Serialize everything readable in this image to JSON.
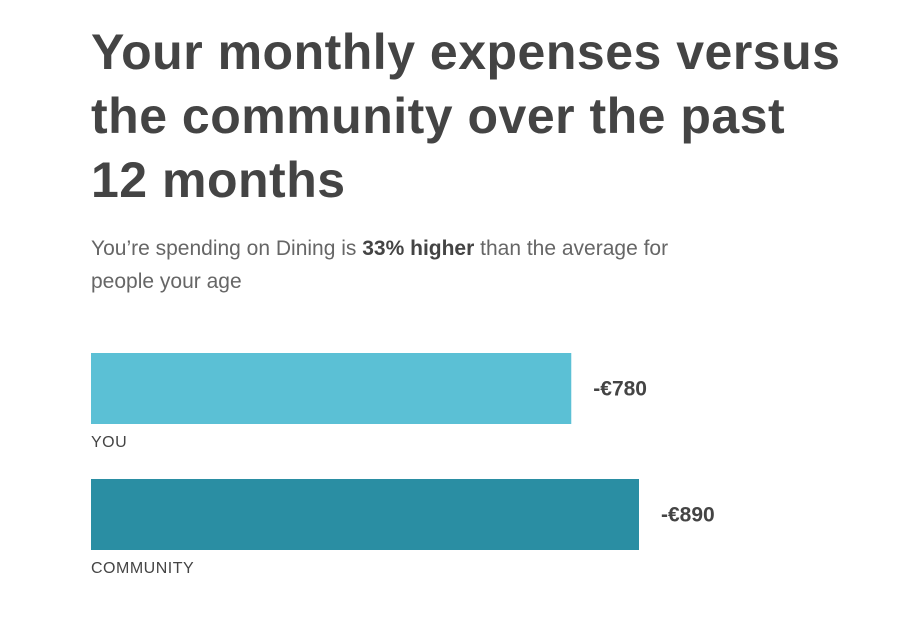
{
  "header": {
    "title": "Your monthly expenses versus the community over the past 12 months",
    "subtitle_pre": "You’re spending on Dining is ",
    "subtitle_strong": "33% higher",
    "subtitle_post": " than the average for people your age"
  },
  "chart_data": {
    "type": "bar",
    "orientation": "horizontal",
    "categories": [
      "YOU",
      "COMMUNITY"
    ],
    "values": [
      -780,
      -890
    ],
    "value_labels": [
      "-€780",
      "-€890"
    ],
    "colors": [
      "#5bc0d5",
      "#2a8ea3"
    ],
    "xlabel": "",
    "ylabel": "",
    "grid": false,
    "legend": "none"
  },
  "colors": {
    "you": "#5bc0d5",
    "community": "#2a8ea3",
    "text": "#444444",
    "muted": "#666666"
  }
}
